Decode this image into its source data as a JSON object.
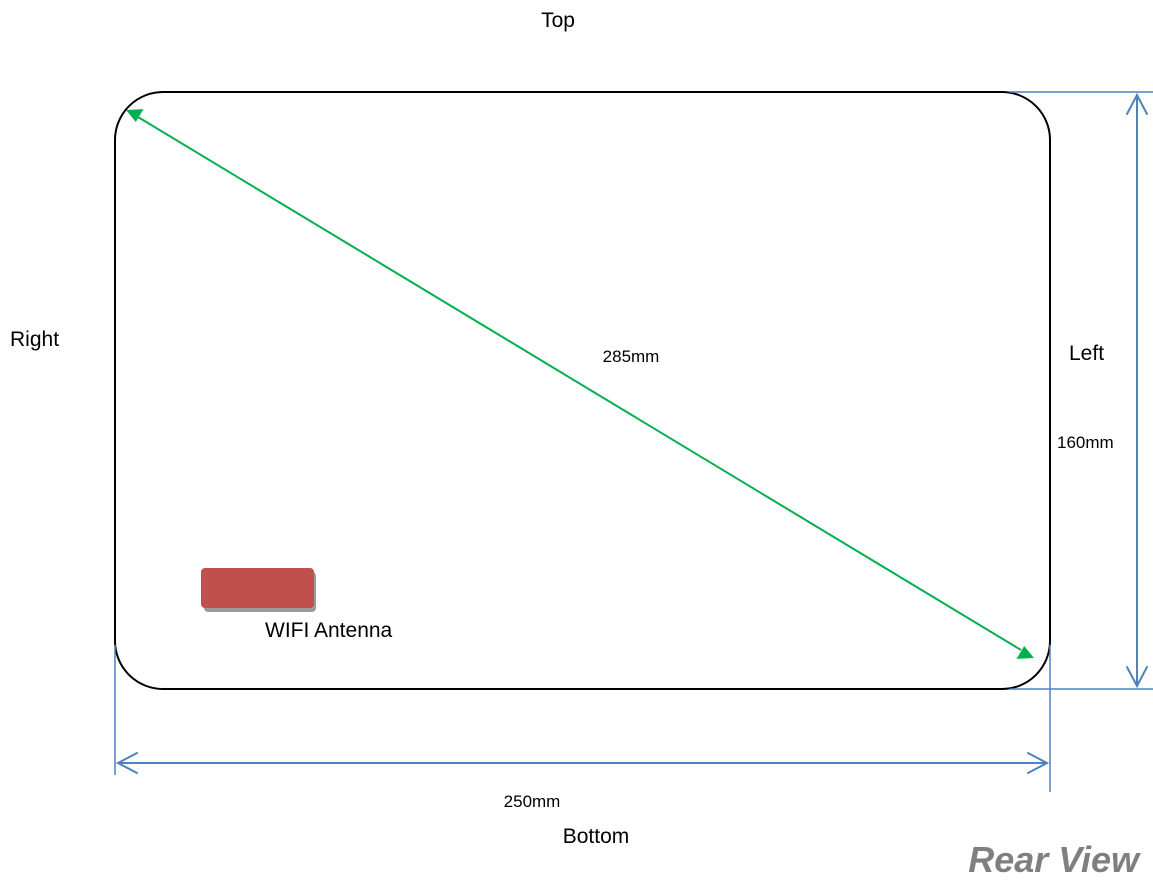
{
  "labels": {
    "top": "Top",
    "bottom": "Bottom",
    "right": "Right",
    "left": "Left"
  },
  "dimensions": {
    "diagonal": "285mm",
    "width": "250mm",
    "height": "160mm"
  },
  "antenna": {
    "label": "WIFI Antenna",
    "color": "#C0504D"
  },
  "view_title": "Rear View",
  "colors": {
    "outline": "#000000",
    "diagonal_arrow": "#00B050",
    "dimension_lines": "#4F81BD",
    "view_title": "#7F7F7F"
  }
}
